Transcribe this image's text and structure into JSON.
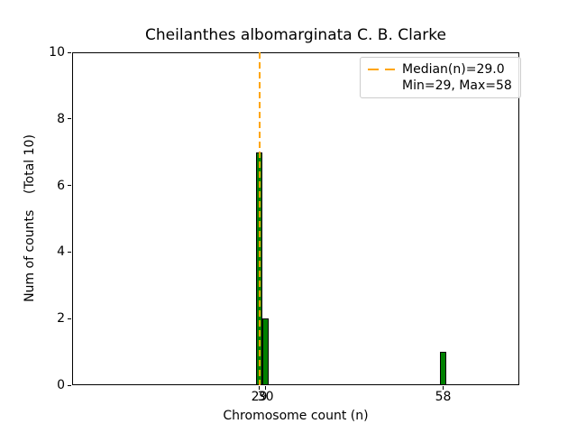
{
  "chart_data": {
    "type": "bar",
    "title": "Cheilanthes albomarginata C. B. Clarke",
    "xlabel": "Chromosome count (n)",
    "ylabel": "Num of counts    (Total 10)",
    "total_counts": 10,
    "bars": [
      {
        "x": 29,
        "count": 7
      },
      {
        "x": 30,
        "count": 2
      },
      {
        "x": 58,
        "count": 1
      }
    ],
    "bar_width": 1.0,
    "bar_fill_color": "#008000",
    "bar_edge_color": "#000000",
    "median_line": {
      "x": 29.0,
      "color": "#FFA500",
      "style": "dashed"
    },
    "stats": {
      "median": 29.0,
      "min": 29,
      "max": 58
    },
    "xlim": [
      -0.5,
      70
    ],
    "ylim": [
      0,
      10
    ],
    "xticks": [
      29,
      30,
      58
    ],
    "yticks": [
      0,
      2,
      4,
      6,
      8,
      10
    ],
    "grid": false,
    "legend": {
      "position": "upper-right",
      "entries": [
        {
          "label": "Median(n)=29.0",
          "symbol": "dashed-line",
          "color": "#FFA500"
        },
        {
          "label": "Min=29, Max=58",
          "symbol": "none",
          "color": ""
        }
      ]
    }
  }
}
